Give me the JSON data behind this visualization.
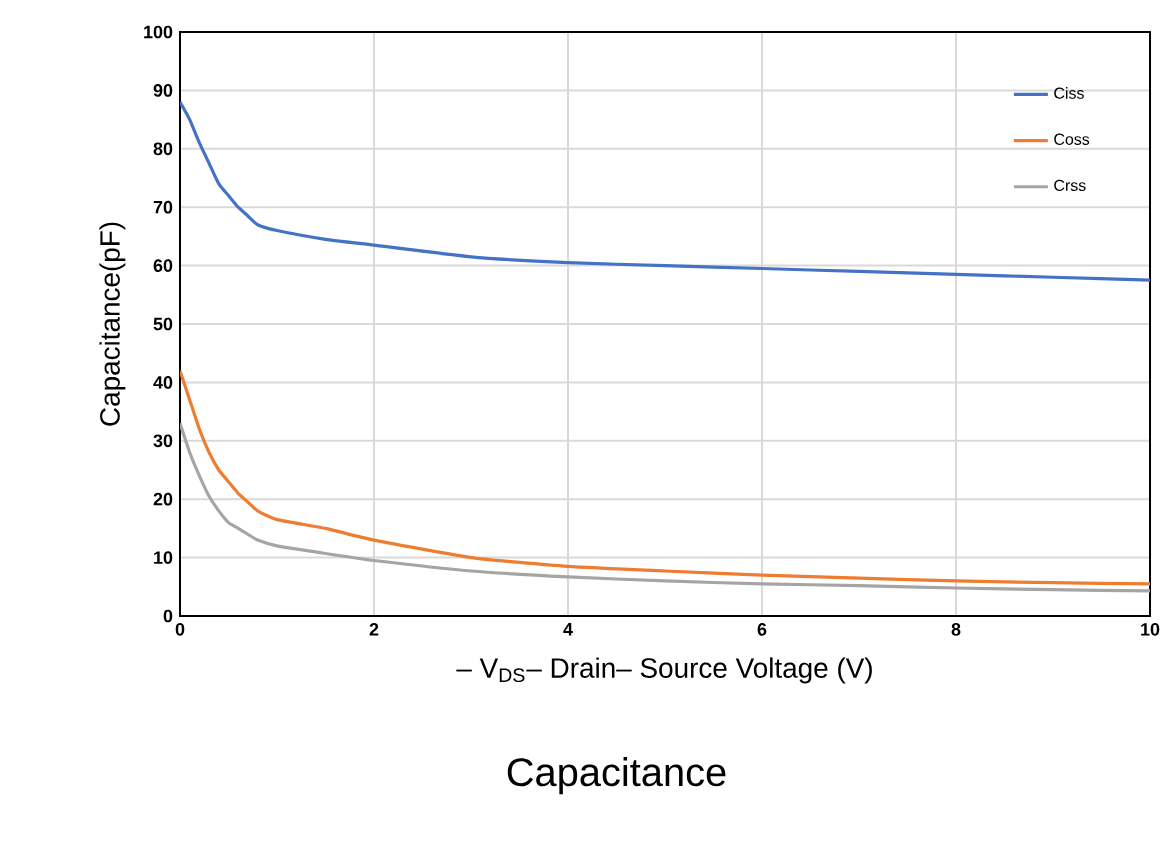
{
  "chart_data": {
    "type": "line",
    "title": "Capacitance",
    "xlabel": "– V$_{DS}$– Drain– Source Voltage (V)",
    "ylabel": "Capacitance(pF)",
    "xlim": [
      0,
      10
    ],
    "ylim": [
      0,
      100
    ],
    "xticks": [
      0,
      2,
      4,
      6,
      8,
      10
    ],
    "yticks": [
      0,
      10,
      20,
      30,
      40,
      50,
      60,
      70,
      80,
      90,
      100
    ],
    "grid": true,
    "legend": "top right",
    "marker": "none",
    "x": [
      0,
      0.1,
      0.2,
      0.3,
      0.4,
      0.5,
      0.6,
      0.7,
      0.8,
      1,
      1.5,
      2,
      3,
      4,
      5,
      6,
      7,
      8,
      9,
      10
    ],
    "series": [
      {
        "name": "Ciss",
        "color": "#4472c4",
        "values": [
          88,
          85,
          81,
          77.5,
          74,
          72,
          70,
          68.5,
          67,
          66,
          64.5,
          63.5,
          61.5,
          60.5,
          60,
          59.5,
          59,
          58.5,
          58,
          57.5
        ]
      },
      {
        "name": "Coss",
        "color": "#ed7d31",
        "values": [
          42,
          37,
          32,
          28,
          25,
          23,
          21,
          19.5,
          18,
          16.5,
          15,
          13,
          10,
          8.5,
          7.7,
          7,
          6.5,
          6,
          5.7,
          5.5
        ]
      },
      {
        "name": "Crss",
        "color": "#a5a5a5",
        "values": [
          33,
          28,
          24,
          20.5,
          18,
          16,
          15,
          14,
          13,
          12,
          10.7,
          9.5,
          7.7,
          6.7,
          6,
          5.5,
          5.2,
          4.8,
          4.5,
          4.3
        ]
      }
    ]
  }
}
